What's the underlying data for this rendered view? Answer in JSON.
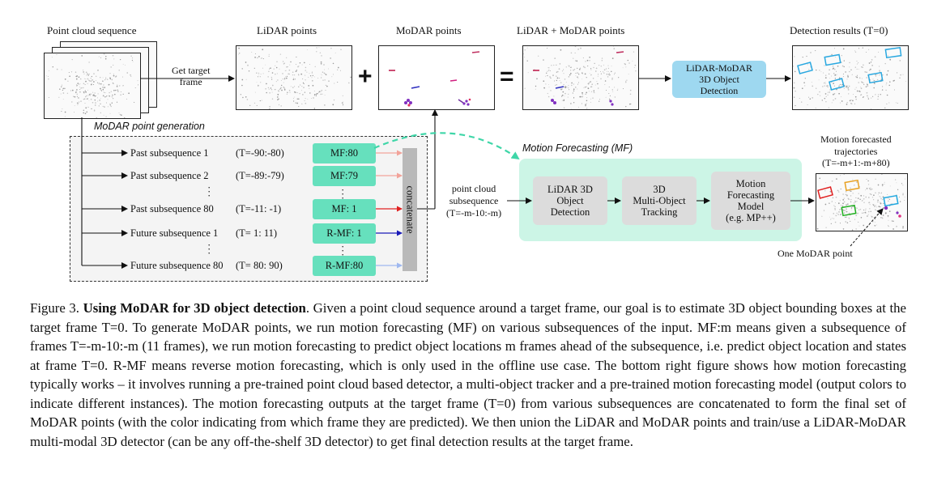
{
  "figure": {
    "labels": {
      "point_cloud_sequence": "Point cloud sequence",
      "lidar_points": "LiDAR points",
      "modar_points": "MoDAR points",
      "lidar_plus_modar": "LiDAR + MoDAR points",
      "detection_results": "Detection results (T=0)",
      "get_target_frame": "Get target\nframe",
      "plus_sign": "+",
      "equals_sign": "=",
      "lidar_modar_detection": "LiDAR-MoDAR\n3D Object\nDetection",
      "modar_point_generation": "MoDAR point generation",
      "motion_forecasting_title": "Motion Forecasting (MF)",
      "concatenate": "concatenate",
      "point_cloud_subsequence": "point cloud\nsubsequence\n(T=-m-10:-m)",
      "lidar_3d_detection": "LiDAR 3D\nObject\nDetection",
      "mot_tracking": "3D\nMulti-Object\nTracking",
      "mf_model": "Motion\nForecasting\nModel\n(e.g. MP++)",
      "motion_forecasted_trajectories": "Motion forecasted\ntrajectories\n(T=-m+1:-m+80)",
      "one_modar_point": "One MoDAR point"
    },
    "subsequences": [
      {
        "name": "Past subsequence 1",
        "range": "(T=-90:-80)",
        "model": "MF:80",
        "arrow_color": "#f2a39a"
      },
      {
        "name": "Past subsequence 2",
        "range": "(T=-89:-79)",
        "model": "MF:79",
        "arrow_color": "#f2a39a"
      },
      {
        "name": "Past subsequence 80",
        "range": "(T=-11: -1)",
        "model": "MF: 1",
        "arrow_color": "#e02020"
      },
      {
        "name": "Future subsequence 1",
        "range": "(T=  1:  11)",
        "model": "R-MF: 1",
        "arrow_color": "#1a1ab8"
      },
      {
        "name": "Future subsequence 80",
        "range": "(T= 80: 90)",
        "model": "R-MF:80",
        "arrow_color": "#9fb8ef"
      }
    ],
    "colors": {
      "modar_box": "#66e0bd",
      "mf_panel": "#ccf5e6",
      "detection_box": "#9ed8f0",
      "stage_box": "#dcdcdc",
      "concat_bar": "#b9b9b9",
      "dashed_arrow": "#3fd6a8"
    }
  },
  "caption": {
    "prefix": "Figure 3.",
    "title": "Using MoDAR for 3D object detection",
    "body": ". Given a point cloud sequence around a target frame, our goal is to estimate 3D object bounding boxes at the target frame T=0. To generate MoDAR points, we run motion forecasting (MF) on various subsequences of the input. MF:m means given a subsequence of frames T=-m-10:-m (11 frames), we run motion forecasting to predict object locations m frames ahead of the subsequence, i.e. predict object location and states at frame T=0. R-MF means reverse motion forecasting, which is only used in the offline use case. The bottom right figure shows how motion forecasting typically works – it involves running a pre-trained point cloud based detector, a multi-object tracker and a pre-trained motion forecasting model (output colors to indicate different instances). The motion forecasting outputs at the target frame (T=0) from various subsequences are concatenated to form the final set of MoDAR points (with the color indicating from which frame they are predicted). We then union the LiDAR and MoDAR points and train/use a LiDAR-MoDAR multi-modal 3D detector (can be any off-the-shelf 3D detector) to get final detection results at the target frame."
  }
}
